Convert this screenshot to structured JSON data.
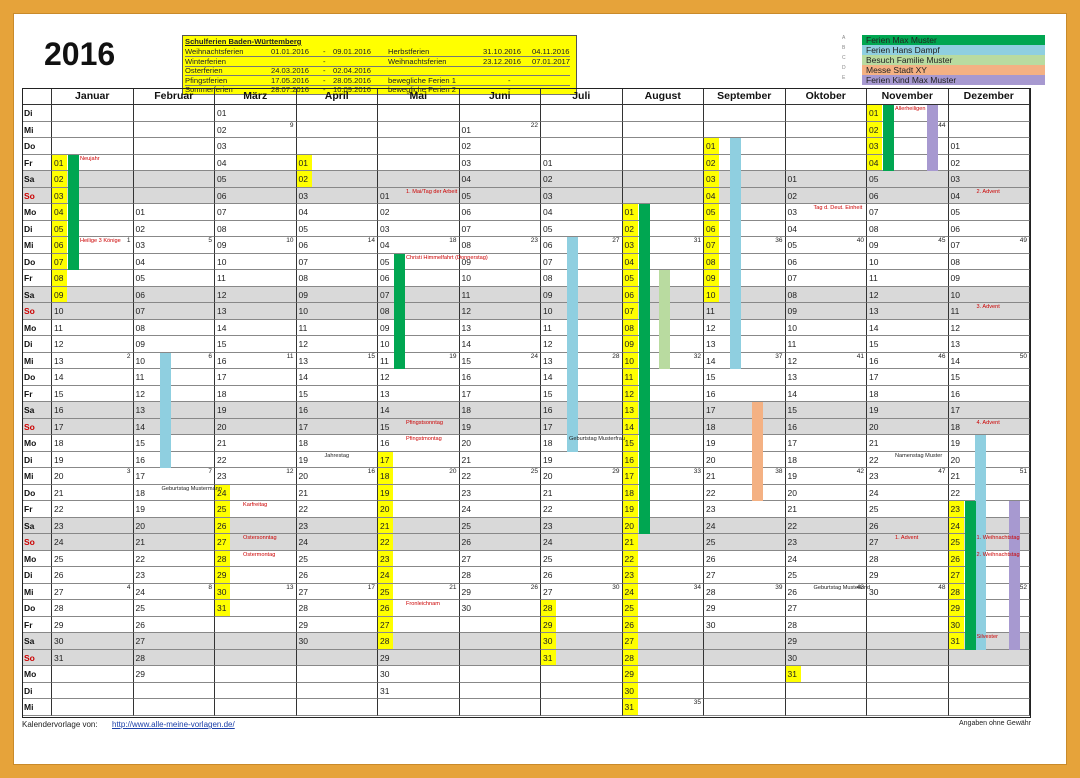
{
  "year": "2016",
  "school_holidays": {
    "title": "Schulferien Baden-Württemberg",
    "rows": [
      [
        "Weihnachtsferien",
        "01.01.2016",
        "-",
        "09.01.2016",
        "Herbstferien",
        "31.10.2016",
        "-",
        "04.11.2016"
      ],
      [
        "Winterferien",
        "",
        "-",
        "",
        "Weihnachtsferien",
        "23.12.2016",
        "-",
        "07.01.2017"
      ],
      [
        "Osterferien",
        "24.03.2016",
        "-",
        "02.04.2016",
        "",
        "",
        "",
        ""
      ],
      [
        "Pfingstferien",
        "17.05.2016",
        "-",
        "28.05.2016",
        "bewegliche Ferien 1",
        "",
        "-",
        ""
      ],
      [
        "Sommerferien",
        "28.07.2016",
        "-",
        "10.09.2016",
        "bewegliche Ferien 2",
        "",
        "-",
        ""
      ]
    ]
  },
  "legend": [
    {
      "key": "A",
      "label": "Ferien Max Muster",
      "color": "#00a651"
    },
    {
      "key": "B",
      "label": "Ferien Hans Dampf",
      "color": "#8fcfe0"
    },
    {
      "key": "C",
      "label": "Besuch Familie Muster",
      "color": "#b9dba0"
    },
    {
      "key": "D",
      "label": "Messe Stadt XY",
      "color": "#f4b183"
    },
    {
      "key": "E",
      "label": "Ferien Kind Max Muster",
      "color": "#a799d0"
    }
  ],
  "months": [
    "Januar",
    "Februar",
    "März",
    "April",
    "Mai",
    "Juni",
    "Juli",
    "August",
    "September",
    "Oktober",
    "November",
    "Dezember"
  ],
  "weekday_labels": [
    "Di",
    "Mi",
    "Do",
    "Fr",
    "Sa",
    "So",
    "Mo",
    "Di",
    "Mi",
    "Do",
    "Fr",
    "Sa",
    "So",
    "Mo",
    "Di",
    "Mi",
    "Do",
    "Fr",
    "Sa",
    "So",
    "Mo",
    "Di",
    "Mi",
    "Do",
    "Fr",
    "Sa",
    "So",
    "Mo",
    "Di",
    "Mi",
    "Do",
    "Fr",
    "Sa",
    "So",
    "Mo",
    "Di",
    "Mi"
  ],
  "month_start_offsets": [
    3,
    6,
    0,
    3,
    5,
    1,
    3,
    6,
    2,
    4,
    0,
    2
  ],
  "month_lengths": [
    31,
    29,
    31,
    30,
    31,
    30,
    31,
    31,
    30,
    31,
    30,
    31
  ],
  "start_week": [
    53,
    5,
    9,
    13,
    17,
    22,
    26,
    31,
    35,
    39,
    44,
    48
  ],
  "school_holiday_days": [
    [
      1,
      2,
      3,
      4,
      5,
      6,
      7,
      8,
      9
    ],
    [],
    [
      24,
      25,
      26,
      27,
      28,
      29,
      30,
      31
    ],
    [
      1,
      2
    ],
    [
      17,
      18,
      19,
      20,
      21,
      22,
      23,
      24,
      25,
      26,
      27,
      28
    ],
    [],
    [
      28,
      29,
      30,
      31
    ],
    [
      1,
      2,
      3,
      4,
      5,
      6,
      7,
      8,
      9,
      10,
      11,
      12,
      13,
      14,
      15,
      16,
      17,
      18,
      19,
      20,
      21,
      22,
      23,
      24,
      25,
      26,
      27,
      28,
      29,
      30,
      31
    ],
    [
      1,
      2,
      3,
      4,
      5,
      6,
      7,
      8,
      9,
      10
    ],
    [
      31
    ],
    [
      1,
      2,
      3,
      4
    ],
    [
      23,
      24,
      25,
      26,
      27,
      28,
      29,
      30,
      31
    ]
  ],
  "events": [
    {
      "month": 0,
      "day": 1,
      "text": "Neujahr",
      "color": "#cc0000"
    },
    {
      "month": 0,
      "day": 6,
      "text": "Heilige 3 Könige",
      "color": "#cc0000"
    },
    {
      "month": 1,
      "day": 18,
      "text": "Geburtstag Mustermann",
      "color": "#222"
    },
    {
      "month": 2,
      "day": 25,
      "text": "Karfreitag",
      "color": "#cc0000"
    },
    {
      "month": 2,
      "day": 27,
      "text": "Ostersonntag",
      "color": "#cc0000"
    },
    {
      "month": 2,
      "day": 28,
      "text": "Ostermontag",
      "color": "#cc0000"
    },
    {
      "month": 3,
      "day": 19,
      "text": "Jahrestag",
      "color": "#222"
    },
    {
      "month": 4,
      "day": 1,
      "text": "1. Mai/Tag der Arbeit",
      "color": "#cc0000"
    },
    {
      "month": 4,
      "day": 5,
      "text": "Christi Himmelfahrt (Donnerstag)",
      "color": "#cc0000"
    },
    {
      "month": 4,
      "day": 15,
      "text": "Pfingstsonntag",
      "color": "#cc0000"
    },
    {
      "month": 4,
      "day": 16,
      "text": "Pfingstmontag",
      "color": "#cc0000"
    },
    {
      "month": 4,
      "day": 26,
      "text": "Fronleichnam",
      "color": "#cc0000"
    },
    {
      "month": 6,
      "day": 18,
      "text": "Geburtstag Musterfrau",
      "color": "#222"
    },
    {
      "month": 9,
      "day": 3,
      "text": "Tag d. Deut. Einheit",
      "color": "#cc0000"
    },
    {
      "month": 9,
      "day": 26,
      "text": "Geburtstag Musterkind",
      "color": "#222"
    },
    {
      "month": 10,
      "day": 1,
      "text": "Allerheiligen",
      "color": "#cc0000"
    },
    {
      "month": 10,
      "day": 22,
      "text": "Namenstag Muster",
      "color": "#222"
    },
    {
      "month": 10,
      "day": 27,
      "text": "1. Advent",
      "color": "#cc0000"
    },
    {
      "month": 11,
      "day": 4,
      "text": "2. Advent",
      "color": "#cc0000"
    },
    {
      "month": 11,
      "day": 11,
      "text": "3. Advent",
      "color": "#cc0000"
    },
    {
      "month": 11,
      "day": 18,
      "text": "4. Advent",
      "color": "#cc0000"
    },
    {
      "month": 11,
      "day": 25,
      "text": "1. Weihnachtstag",
      "color": "#cc0000"
    },
    {
      "month": 11,
      "day": 26,
      "text": "2. Weihnachtstag",
      "color": "#cc0000"
    },
    {
      "month": 11,
      "day": 31,
      "text": "Silvester",
      "color": "#cc0000"
    }
  ],
  "bars": [
    {
      "month": 0,
      "from": 1,
      "to": 7,
      "lane": 0,
      "color": "#00a651"
    },
    {
      "month": 1,
      "from": 10,
      "to": 16,
      "lane": 1,
      "color": "#8fcfe0"
    },
    {
      "month": 4,
      "from": 5,
      "to": 11,
      "lane": 0,
      "color": "#00a651"
    },
    {
      "month": 6,
      "from": 6,
      "to": 18,
      "lane": 1,
      "color": "#8fcfe0"
    },
    {
      "month": 7,
      "from": 1,
      "to": 20,
      "lane": 0,
      "color": "#00a651"
    },
    {
      "month": 7,
      "from": 5,
      "to": 10,
      "lane": 2,
      "color": "#b9dba0"
    },
    {
      "month": 8,
      "from": 1,
      "to": 14,
      "lane": 1,
      "color": "#8fcfe0"
    },
    {
      "month": 8,
      "from": 17,
      "to": 22,
      "lane": 3,
      "color": "#f4b183"
    },
    {
      "month": 10,
      "from": 1,
      "to": 4,
      "lane": 0,
      "color": "#00a651"
    },
    {
      "month": 10,
      "from": 1,
      "to": 4,
      "lane": 4,
      "color": "#a799d0"
    },
    {
      "month": 11,
      "from": 19,
      "to": 31,
      "lane": 1,
      "color": "#8fcfe0"
    },
    {
      "month": 11,
      "from": 23,
      "to": 31,
      "lane": 0,
      "color": "#00a651"
    },
    {
      "month": 11,
      "from": 23,
      "to": 31,
      "lane": 4,
      "color": "#a799d0"
    }
  ],
  "footer": {
    "template_label": "Kalendervorlage von:",
    "url": "http://www.alle-meine-vorlagen.de/",
    "disclaimer": "Angaben ohne Gewähr"
  }
}
